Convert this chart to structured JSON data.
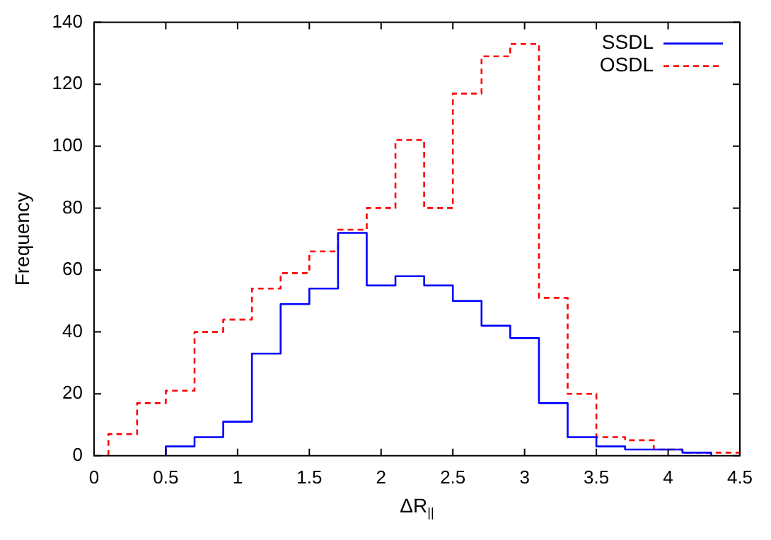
{
  "chart_data": {
    "type": "histogram",
    "xlabel": "ΔR$_{||}$",
    "ylabel": "Frequency",
    "bins": [
      0.1,
      0.3,
      0.5,
      0.7,
      0.9,
      1.1,
      1.3,
      1.5,
      1.7,
      1.9,
      2.1,
      2.3,
      2.5,
      2.7,
      2.9,
      3.1,
      3.3,
      3.5,
      3.7,
      3.9,
      4.1,
      4.3,
      4.5
    ],
    "series": [
      {
        "name": "SSDL",
        "color": "#0000ff",
        "line_style": "solid",
        "bins": [
          0.5,
          0.7,
          0.9,
          1.1,
          1.3,
          1.5,
          1.7,
          1.9,
          2.1,
          2.3,
          2.5,
          2.7,
          2.9,
          3.1,
          3.3,
          3.5,
          3.7,
          3.9,
          4.1,
          4.3
        ],
        "values": [
          3,
          6,
          11,
          33,
          49,
          54,
          72,
          55,
          58,
          55,
          50,
          42,
          38,
          17,
          6,
          3,
          2,
          2,
          1
        ]
      },
      {
        "name": "OSDL",
        "color": "#ff0000",
        "line_style": "dashed",
        "values": [
          7,
          17,
          21,
          40,
          44,
          54,
          59,
          66,
          73,
          80,
          102,
          80,
          117,
          129,
          133,
          51,
          20,
          6,
          5,
          2,
          1,
          1
        ]
      }
    ],
    "xlim": [
      0,
      4.5
    ],
    "xticks": [
      0,
      0.5,
      1,
      1.5,
      2,
      2.5,
      3,
      3.5,
      4,
      4.5
    ],
    "ylim": [
      0,
      140
    ],
    "yticks": [
      0,
      20,
      40,
      60,
      80,
      100,
      120,
      140
    ],
    "grid": false,
    "legend": "top right"
  }
}
